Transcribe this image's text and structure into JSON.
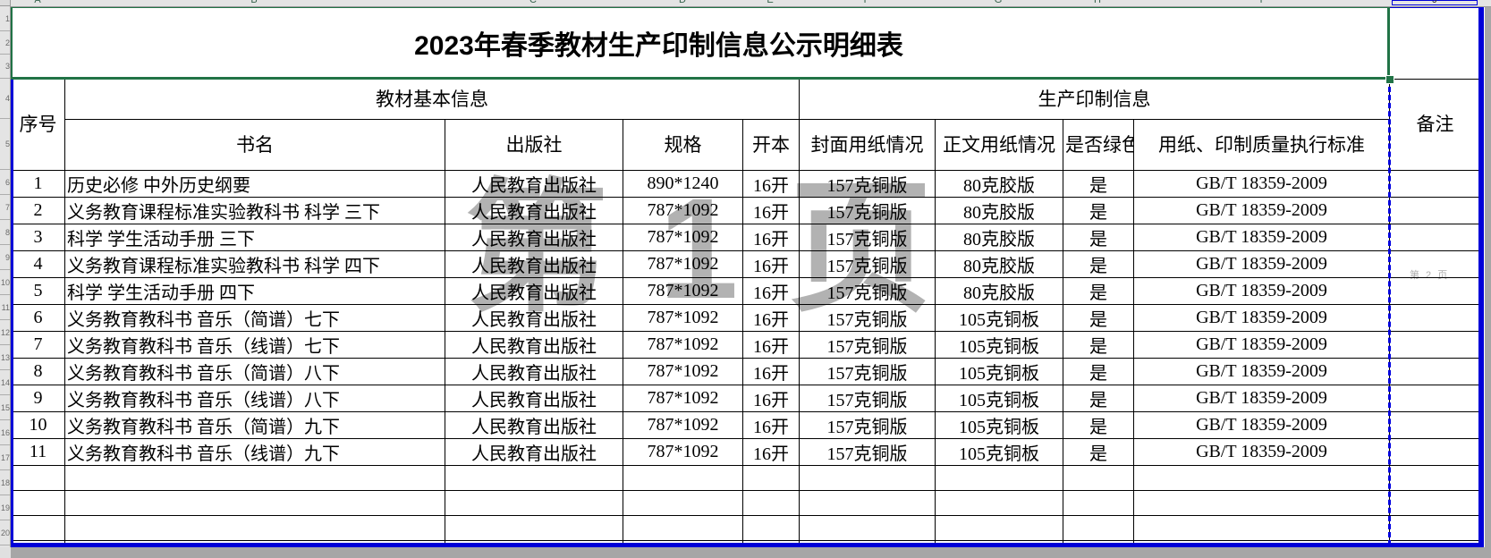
{
  "title": "2023年春季教材生产印制信息公示明细表",
  "spreadsheet": {
    "column_letters": [
      "A",
      "B",
      "C",
      "D",
      "E",
      "F",
      "G",
      "H",
      "I",
      "J"
    ],
    "row_numbers": [
      "1",
      "2",
      "3",
      "4",
      "5",
      "6",
      "7",
      "8",
      "9",
      "10",
      "11",
      "12",
      "13",
      "14",
      "15",
      "16",
      "17",
      "18",
      "19",
      "20"
    ]
  },
  "watermarks": {
    "page1": "第 1 页",
    "page2": "第 2 页"
  },
  "table": {
    "header_groups": {
      "serial": "序号",
      "basic_info": "教材基本信息",
      "production_info": "生产印制信息",
      "remark": "备注"
    },
    "columns": {
      "book_title": "书名",
      "publisher": "出版社",
      "spec": "规格",
      "format": "开本",
      "cover_paper": "封面用纸情况",
      "body_paper": "正文用纸情况",
      "green_print": "是否绿色印刷",
      "standard": "用纸、印制质量执行标准"
    },
    "rows": [
      {
        "no": "1",
        "title": "历史必修 中外历史纲要",
        "publisher": "人民教育出版社",
        "spec": "890*1240",
        "format": "16开",
        "cover": "157克铜版",
        "body": "80克胶版",
        "green": "是",
        "standard": "GB/T 18359-2009",
        "remark": ""
      },
      {
        "no": "2",
        "title": "义务教育课程标准实验教科书 科学 三下",
        "publisher": "人民教育出版社",
        "spec": "787*1092",
        "format": "16开",
        "cover": "157克铜版",
        "body": "80克胶版",
        "green": "是",
        "standard": "GB/T 18359-2009",
        "remark": ""
      },
      {
        "no": "3",
        "title": "科学 学生活动手册 三下",
        "publisher": "人民教育出版社",
        "spec": "787*1092",
        "format": "16开",
        "cover": "157克铜版",
        "body": "80克胶版",
        "green": "是",
        "standard": "GB/T 18359-2009",
        "remark": ""
      },
      {
        "no": "4",
        "title": "义务教育课程标准实验教科书 科学 四下",
        "publisher": "人民教育出版社",
        "spec": "787*1092",
        "format": "16开",
        "cover": "157克铜版",
        "body": "80克胶版",
        "green": "是",
        "standard": "GB/T 18359-2009",
        "remark": ""
      },
      {
        "no": "5",
        "title": "科学 学生活动手册 四下",
        "publisher": "人民教育出版社",
        "spec": "787*1092",
        "format": "16开",
        "cover": "157克铜版",
        "body": "80克胶版",
        "green": "是",
        "standard": "GB/T 18359-2009",
        "remark": ""
      },
      {
        "no": "6",
        "title": "义务教育教科书 音乐（简谱）七下",
        "publisher": "人民教育出版社",
        "spec": "787*1092",
        "format": "16开",
        "cover": "157克铜版",
        "body": "105克铜板",
        "green": "是",
        "standard": "GB/T 18359-2009",
        "remark": ""
      },
      {
        "no": "7",
        "title": "义务教育教科书 音乐（线谱）七下",
        "publisher": "人民教育出版社",
        "spec": "787*1092",
        "format": "16开",
        "cover": "157克铜版",
        "body": "105克铜板",
        "green": "是",
        "standard": "GB/T 18359-2009",
        "remark": ""
      },
      {
        "no": "8",
        "title": "义务教育教科书 音乐（简谱）八下",
        "publisher": "人民教育出版社",
        "spec": "787*1092",
        "format": "16开",
        "cover": "157克铜版",
        "body": "105克铜板",
        "green": "是",
        "standard": "GB/T 18359-2009",
        "remark": ""
      },
      {
        "no": "9",
        "title": "义务教育教科书 音乐（线谱）八下",
        "publisher": "人民教育出版社",
        "spec": "787*1092",
        "format": "16开",
        "cover": "157克铜版",
        "body": "105克铜板",
        "green": "是",
        "standard": "GB/T 18359-2009",
        "remark": ""
      },
      {
        "no": "10",
        "title": "义务教育教科书 音乐（简谱）九下",
        "publisher": "人民教育出版社",
        "spec": "787*1092",
        "format": "16开",
        "cover": "157克铜版",
        "body": "105克铜板",
        "green": "是",
        "standard": "GB/T 18359-2009",
        "remark": ""
      },
      {
        "no": "11",
        "title": "义务教育教科书 音乐（线谱）九下",
        "publisher": "人民教育出版社",
        "spec": "787*1092",
        "format": "16开",
        "cover": "157克铜版",
        "body": "105克铜板",
        "green": "是",
        "standard": "GB/T 18359-2009",
        "remark": ""
      }
    ],
    "empty_row_count": 4
  },
  "colors": {
    "selection_green": "#217346",
    "page_break_blue": "#0000d8",
    "outside_gray": "#a6a6a6",
    "watermark_gray": "#9f9f9f"
  }
}
